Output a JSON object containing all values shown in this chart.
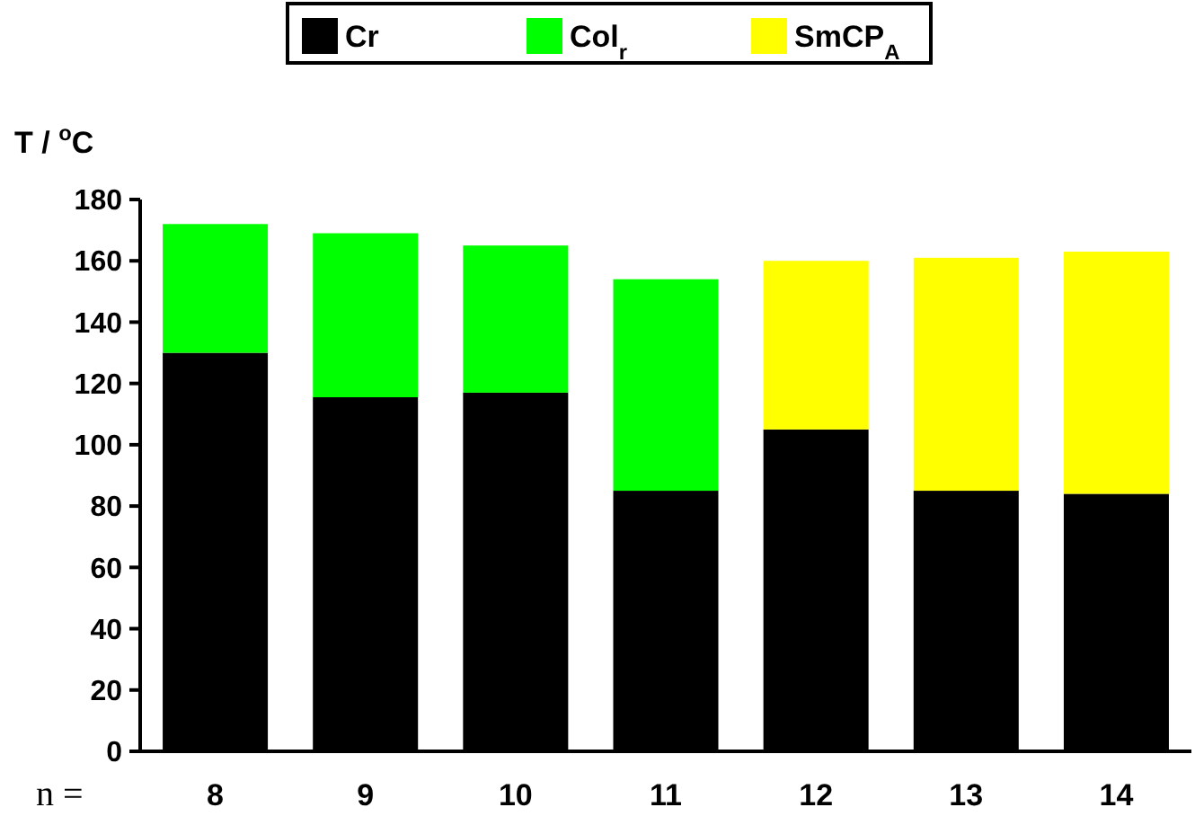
{
  "chart_data": {
    "type": "bar",
    "stacked": true,
    "ylabel": "T / $^{o}$C",
    "xlabel": "n =",
    "categories": [
      "8",
      "9",
      "10",
      "11",
      "12",
      "13",
      "14"
    ],
    "series": [
      {
        "name": "Cr",
        "color": "#000000",
        "values": [
          130,
          115.5,
          117,
          85,
          105,
          85,
          84
        ]
      },
      {
        "name": "Col$_{r}$",
        "color": "#00ff00",
        "values": [
          42,
          53.5,
          48,
          69,
          null,
          null,
          null
        ]
      },
      {
        "name": "SmCP$_{A}$",
        "color": "#ffff00",
        "values": [
          null,
          null,
          null,
          null,
          55,
          76,
          79
        ]
      }
    ],
    "ylim": [
      0,
      180
    ],
    "yticks": [
      0,
      20,
      40,
      60,
      80,
      100,
      120,
      140,
      160,
      180
    ],
    "grid": false,
    "legend": "top"
  }
}
